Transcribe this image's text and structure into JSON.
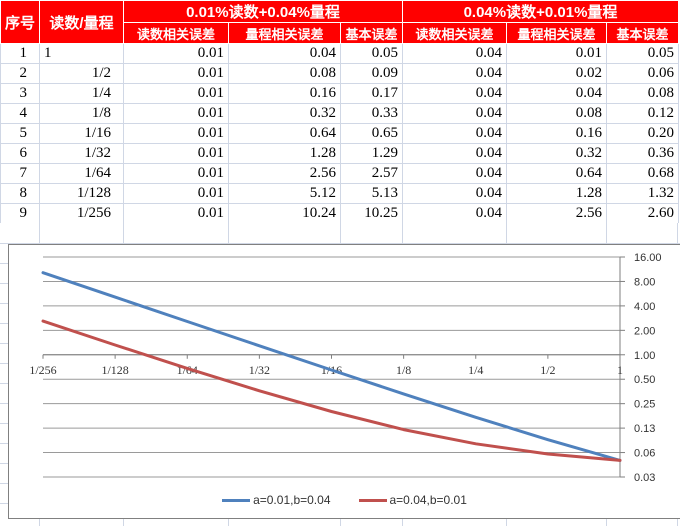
{
  "table": {
    "header": {
      "col_serial": "序号",
      "col_reading_range": "读数/量程",
      "group1": "0.01%读数+0.04%量程",
      "group2": "0.04%读数+0.01%量程",
      "sub": [
        "读数相关误差",
        "量程相关误差",
        "基本误差",
        "读数相关误差",
        "量程相关误差",
        "基本误差"
      ]
    },
    "rows": [
      [
        "1",
        "1",
        "0.01",
        "0.04",
        "0.05",
        "0.04",
        "0.01",
        "0.05"
      ],
      [
        "2",
        "1/2",
        "0.01",
        "0.08",
        "0.09",
        "0.04",
        "0.02",
        "0.06"
      ],
      [
        "3",
        "1/4",
        "0.01",
        "0.16",
        "0.17",
        "0.04",
        "0.04",
        "0.08"
      ],
      [
        "4",
        "1/8",
        "0.01",
        "0.32",
        "0.33",
        "0.04",
        "0.08",
        "0.12"
      ],
      [
        "5",
        "1/16",
        "0.01",
        "0.64",
        "0.65",
        "0.04",
        "0.16",
        "0.20"
      ],
      [
        "6",
        "1/32",
        "0.01",
        "1.28",
        "1.29",
        "0.04",
        "0.32",
        "0.36"
      ],
      [
        "7",
        "1/64",
        "0.01",
        "2.56",
        "2.57",
        "0.04",
        "0.64",
        "0.68"
      ],
      [
        "8",
        "1/128",
        "0.01",
        "5.12",
        "5.13",
        "0.04",
        "1.28",
        "1.32"
      ],
      [
        "9",
        "1/256",
        "0.01",
        "10.24",
        "10.25",
        "0.04",
        "2.56",
        "2.60"
      ]
    ]
  },
  "chart_data": {
    "type": "line",
    "x_categories": [
      "1/256",
      "1/128",
      "1/64",
      "1/32",
      "1/16",
      "1/8",
      "1/4",
      "1/2",
      "1"
    ],
    "series": [
      {
        "name": "a=0.01,b=0.04",
        "color": "#4F81BD",
        "values": [
          10.25,
          5.13,
          2.57,
          1.29,
          0.65,
          0.33,
          0.17,
          0.09,
          0.05
        ]
      },
      {
        "name": "a=0.04,b=0.01",
        "color": "#C0504D",
        "values": [
          2.6,
          1.32,
          0.68,
          0.36,
          0.2,
          0.12,
          0.08,
          0.06,
          0.05
        ]
      }
    ],
    "y_axis": {
      "side": "right",
      "scale": "log2",
      "max": 16,
      "min": 0.03125,
      "tick_labels": [
        "16.00",
        "8.00",
        "4.00",
        "2.00",
        "1.00",
        "0.50",
        "0.25",
        "0.13",
        "0.06",
        "0.03"
      ]
    },
    "x_axis": {
      "cross_at": 1.0
    },
    "grid": true,
    "legend_position": "bottom"
  },
  "colors": {
    "header_bg": "#FF0000",
    "header_text": "#FFFFFF",
    "cell_text": "#000000",
    "sheet_gridline": "#D0D7E5",
    "chart_border": "#808080",
    "chart_gridline": "#9A9A9A",
    "chart_axis": "#7F7F7F",
    "axis_text": "#333333",
    "series1_blue": "#4F81BD",
    "series2_red": "#C0504D"
  }
}
